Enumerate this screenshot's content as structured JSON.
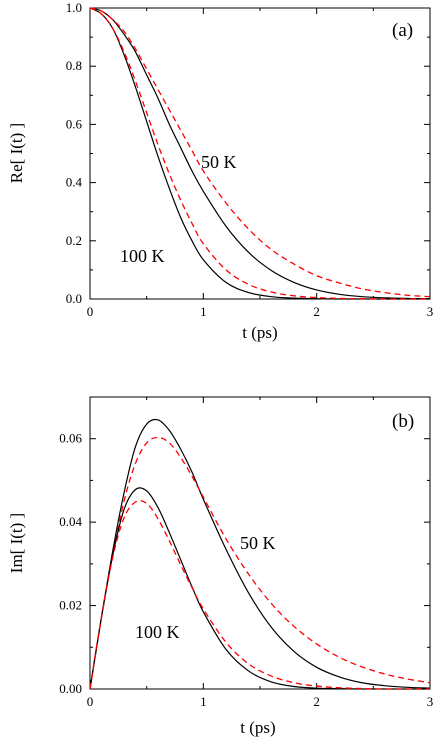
{
  "chart_data": [
    {
      "panel": "(a)",
      "type": "line",
      "xlabel": "t (ps)",
      "ylabel": "Re[ I(t) ]",
      "xlim": [
        0,
        3
      ],
      "ylim": [
        0.0,
        1.0
      ],
      "x_ticks": [
        "0",
        "1",
        "2",
        "3"
      ],
      "y_ticks": [
        "0.0",
        "0.2",
        "0.4",
        "0.6",
        "0.8",
        "1.0"
      ],
      "annotations": [
        "50 K",
        "100 K"
      ],
      "series": [
        {
          "temp": "50 K",
          "style": "solid",
          "color": "#000000",
          "x": [
            0,
            0.1,
            0.2,
            0.3,
            0.4,
            0.5,
            0.6,
            0.7,
            0.8,
            0.9,
            1.0,
            1.2,
            1.4,
            1.6,
            1.8,
            2.0,
            2.2,
            2.4,
            2.6,
            2.8,
            3.0
          ],
          "y": [
            1.0,
            0.99,
            0.96,
            0.91,
            0.85,
            0.77,
            0.69,
            0.6,
            0.52,
            0.44,
            0.37,
            0.25,
            0.16,
            0.098,
            0.057,
            0.031,
            0.016,
            0.008,
            0.004,
            0.002,
            0.001
          ]
        },
        {
          "temp": "50 K",
          "style": "dashed",
          "color": "#ff0000",
          "x": [
            0,
            0.1,
            0.2,
            0.3,
            0.4,
            0.5,
            0.6,
            0.7,
            0.8,
            0.9,
            1.0,
            1.2,
            1.4,
            1.6,
            1.8,
            2.0,
            2.2,
            2.4,
            2.6,
            2.8,
            3.0
          ],
          "y": [
            1.0,
            0.99,
            0.96,
            0.92,
            0.86,
            0.79,
            0.72,
            0.65,
            0.58,
            0.51,
            0.44,
            0.33,
            0.24,
            0.17,
            0.12,
            0.08,
            0.055,
            0.035,
            0.022,
            0.013,
            0.008
          ]
        },
        {
          "temp": "100 K",
          "style": "solid",
          "color": "#000000",
          "x": [
            0,
            0.1,
            0.2,
            0.3,
            0.4,
            0.5,
            0.6,
            0.7,
            0.8,
            0.9,
            1.0,
            1.2,
            1.4,
            1.6,
            1.8,
            2.0,
            2.2,
            2.4,
            2.6,
            2.8,
            3.0
          ],
          "y": [
            1.0,
            0.98,
            0.93,
            0.84,
            0.73,
            0.61,
            0.49,
            0.38,
            0.28,
            0.2,
            0.135,
            0.057,
            0.022,
            0.008,
            0.003,
            0.001,
            0.0,
            0.0,
            0.0,
            0.0,
            0.0
          ]
        },
        {
          "temp": "100 K",
          "style": "dashed",
          "color": "#ff0000",
          "x": [
            0,
            0.1,
            0.2,
            0.3,
            0.4,
            0.5,
            0.6,
            0.7,
            0.8,
            0.9,
            1.0,
            1.2,
            1.4,
            1.6,
            1.8,
            2.0,
            2.2,
            2.4,
            2.6,
            2.8,
            3.0
          ],
          "y": [
            1.0,
            0.98,
            0.93,
            0.85,
            0.75,
            0.64,
            0.53,
            0.43,
            0.34,
            0.26,
            0.19,
            0.1,
            0.05,
            0.024,
            0.011,
            0.005,
            0.002,
            0.001,
            0.0,
            0.0,
            0.0
          ]
        }
      ]
    },
    {
      "panel": "(b)",
      "type": "line",
      "xlabel": "t (ps)",
      "ylabel": "Im[ I(t) ]",
      "xlim": [
        0,
        3
      ],
      "ylim": [
        0.0,
        0.07
      ],
      "x_ticks": [
        "0",
        "1",
        "2",
        "3"
      ],
      "y_ticks": [
        "0.00",
        "0.02",
        "0.04",
        "0.06"
      ],
      "annotations": [
        "50 K",
        "100 K"
      ],
      "series": [
        {
          "temp": "50 K",
          "style": "solid",
          "color": "#000000",
          "x": [
            0,
            0.1,
            0.2,
            0.3,
            0.4,
            0.5,
            0.6,
            0.7,
            0.8,
            0.9,
            1.0,
            1.2,
            1.4,
            1.6,
            1.8,
            2.0,
            2.2,
            2.4,
            2.6,
            2.8,
            3.0
          ],
          "y": [
            0.0,
            0.017,
            0.033,
            0.047,
            0.058,
            0.0635,
            0.0645,
            0.062,
            0.0575,
            0.052,
            0.0455,
            0.0335,
            0.023,
            0.0148,
            0.009,
            0.0052,
            0.0029,
            0.0015,
            0.0008,
            0.0004,
            0.0002
          ]
        },
        {
          "temp": "50 K",
          "style": "dashed",
          "color": "#ff0000",
          "x": [
            0,
            0.1,
            0.2,
            0.3,
            0.4,
            0.5,
            0.6,
            0.7,
            0.8,
            0.9,
            1.0,
            1.2,
            1.4,
            1.6,
            1.8,
            2.0,
            2.2,
            2.4,
            2.6,
            2.8,
            3.0
          ],
          "y": [
            0.0,
            0.017,
            0.032,
            0.045,
            0.054,
            0.059,
            0.0603,
            0.059,
            0.0555,
            0.051,
            0.046,
            0.036,
            0.0275,
            0.0205,
            0.015,
            0.0108,
            0.0076,
            0.0053,
            0.0036,
            0.0024,
            0.0015
          ]
        },
        {
          "temp": "100 K",
          "style": "solid",
          "color": "#000000",
          "x": [
            0,
            0.1,
            0.2,
            0.3,
            0.4,
            0.5,
            0.6,
            0.7,
            0.8,
            0.9,
            1.0,
            1.2,
            1.4,
            1.6,
            1.8,
            2.0,
            2.2,
            2.4,
            2.6,
            2.8,
            3.0
          ],
          "y": [
            0.0,
            0.017,
            0.032,
            0.043,
            0.0478,
            0.0475,
            0.0435,
            0.0375,
            0.031,
            0.0245,
            0.0185,
            0.0095,
            0.0043,
            0.0017,
            0.0006,
            0.0002,
            0.0001,
            0.0,
            0.0,
            0.0,
            0.0
          ]
        },
        {
          "temp": "100 K",
          "style": "dashed",
          "color": "#ff0000",
          "x": [
            0,
            0.1,
            0.2,
            0.3,
            0.4,
            0.5,
            0.6,
            0.7,
            0.8,
            0.9,
            1.0,
            1.2,
            1.4,
            1.6,
            1.8,
            2.0,
            2.2,
            2.4,
            2.6,
            2.8,
            3.0
          ],
          "y": [
            0.0,
            0.017,
            0.0315,
            0.041,
            0.0448,
            0.0445,
            0.0408,
            0.0355,
            0.0298,
            0.0243,
            0.0192,
            0.0112,
            0.006,
            0.0031,
            0.0015,
            0.0007,
            0.0003,
            0.0001,
            0.0,
            0.0,
            0.0
          ]
        }
      ]
    }
  ]
}
